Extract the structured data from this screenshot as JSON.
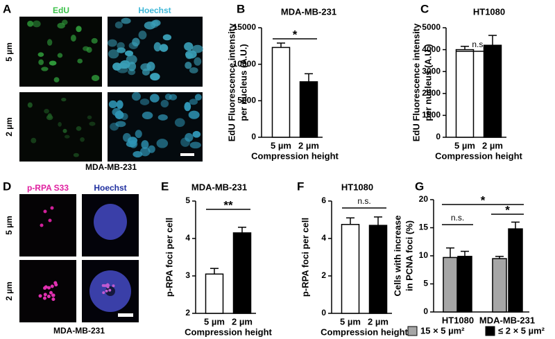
{
  "panel_letters": [
    "A",
    "B",
    "C",
    "D",
    "E",
    "F",
    "G"
  ],
  "image_panels": [
    {
      "columns": [
        "EdU",
        "Hoechst"
      ],
      "rows": [
        "5 µm",
        "2 µm"
      ],
      "caption": "MDA-MB-231"
    },
    {
      "columns": [
        "p-RPA S33",
        "Hoechst"
      ],
      "rows": [
        "5 µm",
        "2 µm"
      ],
      "caption": "MDA-MB-231"
    }
  ],
  "chart_data": [
    {
      "type": "bar",
      "title": "MDA-MB-231",
      "ylabel": [
        "EdU Fluorescence intensity",
        "per nucleus (A.U.)"
      ],
      "xlabel": "Compression height",
      "categories": [
        "5 µm",
        "2 µm"
      ],
      "values": [
        12300,
        7600
      ],
      "errors": [
        600,
        1100
      ],
      "colors": [
        "#ffffff",
        "#000000"
      ],
      "ylim": [
        0,
        15000
      ],
      "yticks": [
        0,
        5000,
        10000,
        15000
      ],
      "annotations": [
        "*"
      ]
    },
    {
      "type": "bar",
      "title": "HT1080",
      "ylabel": [
        "EdU Fluorescence intensity",
        "per nucleus (A.U.)"
      ],
      "xlabel": "Compression height",
      "categories": [
        "5 µm",
        "2 µm"
      ],
      "values": [
        4000,
        4200
      ],
      "errors": [
        150,
        450
      ],
      "colors": [
        "#ffffff",
        "#000000"
      ],
      "ylim": [
        0,
        5000
      ],
      "yticks": [
        0,
        1000,
        2000,
        3000,
        4000,
        5000
      ],
      "annotations": [
        "n.s."
      ]
    },
    {
      "type": "bar",
      "title": "MDA-MB-231",
      "ylabel": [
        "p-RPA foci per cell"
      ],
      "xlabel": "Compression height",
      "categories": [
        "5 µm",
        "2 µm"
      ],
      "values": [
        3.05,
        4.15
      ],
      "errors": [
        0.15,
        0.15
      ],
      "colors": [
        "#ffffff",
        "#000000"
      ],
      "ylim": [
        2,
        5
      ],
      "yticks": [
        2,
        3,
        4,
        5
      ],
      "annotations": [
        "**"
      ]
    },
    {
      "type": "bar",
      "title": "HT1080",
      "ylabel": [
        "p-RPA foci per cell"
      ],
      "xlabel": "Compression height",
      "categories": [
        "5 µm",
        "2 µm"
      ],
      "values": [
        4.75,
        4.7
      ],
      "errors": [
        0.35,
        0.45
      ],
      "colors": [
        "#ffffff",
        "#000000"
      ],
      "ylim": [
        0,
        6
      ],
      "yticks": [
        0,
        2,
        4,
        6
      ],
      "annotations": [
        "n.s."
      ]
    },
    {
      "type": "grouped-bar",
      "ylabel": [
        "Cells with increase",
        "in PCNA foci (%)"
      ],
      "categories": [
        "HT1080",
        "MDA-MB-231"
      ],
      "series": [
        {
          "name": "15 × 5 µm²",
          "color": "#a6a6a6",
          "values": [
            9.7,
            9.5
          ],
          "errors": [
            1.7,
            0.4
          ]
        },
        {
          "name": "≤ 2 × 5 µm²",
          "color": "#000000",
          "values": [
            9.9,
            14.8
          ],
          "errors": [
            0.9,
            1.2
          ]
        }
      ],
      "ylim": [
        0,
        20
      ],
      "yticks": [
        0,
        5,
        10,
        15,
        20
      ],
      "annotations": [
        "n.s.",
        "*",
        "*"
      ]
    }
  ]
}
